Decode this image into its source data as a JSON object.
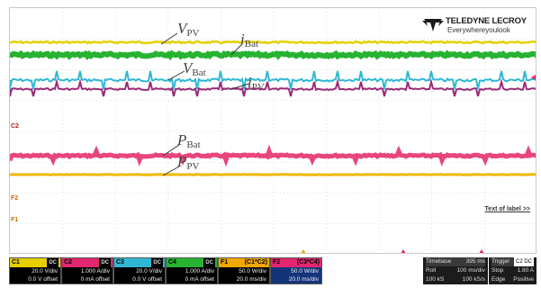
{
  "screen": {
    "trace_labels": {
      "v_pv": {
        "main": "V",
        "sub": "PV"
      },
      "i_bat": {
        "main": "i",
        "sub": "Bat"
      },
      "v_bat": {
        "main": "V",
        "sub": "Bat"
      },
      "i_pv": {
        "main": "i",
        "sub": "PV"
      },
      "p_bat": {
        "main": "P",
        "sub": "Bat"
      },
      "p_pv": {
        "main": "P",
        "sub": "PV"
      }
    },
    "side_markers": {
      "c2": "C2",
      "f2": "F2",
      "f1": "F1"
    },
    "footnote_link": "Text of label >>"
  },
  "logo": {
    "name": "TELEDYNE LECROY",
    "tagline": "Everywhereyoulook"
  },
  "channels": [
    {
      "id": "C1",
      "coupling": "DC",
      "color": "#e6d000",
      "scale": "20.0 V/div",
      "offset": "0.0 V offset"
    },
    {
      "id": "C2",
      "coupling": "DC",
      "color": "#e2266f",
      "scale": "1.000 A/div",
      "offset": "0 mA offset"
    },
    {
      "id": "C3",
      "coupling": "DC",
      "color": "#2fb8d4",
      "scale": "20.0 V/div",
      "offset": "0.0 V offset"
    },
    {
      "id": "C4",
      "coupling": "DC",
      "color": "#27b331",
      "scale": "1.000 A/div",
      "offset": "0 mA offset"
    },
    {
      "id": "F1",
      "math": "(C1*C2)",
      "color": "#f0a800",
      "scale": "50.0 W/div",
      "offset": "20.0 ms/div"
    },
    {
      "id": "F2",
      "math": "(C3*C4)",
      "color": "#e2266f",
      "scale": "50.0 W/div",
      "offset": "20.0 ms/div"
    }
  ],
  "timebase": {
    "label": "Timebase",
    "value": "395 ms",
    "mode": "Roll",
    "per_div": "100 ms/div",
    "samples": "100 kS",
    "rate": "100 kS/s"
  },
  "trigger": {
    "label": "Trigger",
    "badge": "C2 DC",
    "mode": "Stop",
    "level": "1.80 A",
    "type": "Edge",
    "slope": "Positive"
  },
  "colors": {
    "v_pv": "#e6d000",
    "i_bat": "#27b331",
    "v_bat": "#2fb8d4",
    "i_pv": "#9b2a78",
    "p_bat": "#e8457e",
    "p_pv": "#f0b800",
    "grid": "#c9c9c9"
  }
}
